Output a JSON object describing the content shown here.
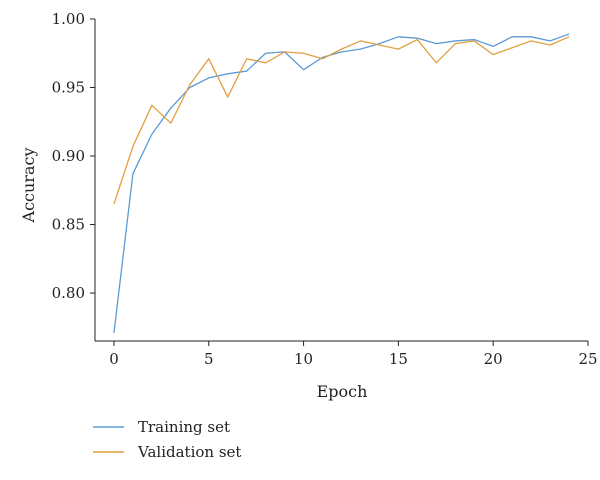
{
  "chart_data": {
    "type": "line",
    "xlabel": "Epoch",
    "ylabel": "Accuracy",
    "xlim": [
      -1,
      25
    ],
    "ylim": [
      0.765,
      1.0
    ],
    "xticks": [
      0,
      5,
      10,
      15,
      20,
      25
    ],
    "yticks": [
      0.8,
      0.85,
      0.9,
      0.95,
      1.0
    ],
    "xtick_labels": [
      "0",
      "5",
      "10",
      "15",
      "20",
      "25"
    ],
    "ytick_labels": [
      "0.80",
      "0.85",
      "0.90",
      "0.95",
      "1.00"
    ],
    "grid": false,
    "legend_position": "below",
    "x": [
      0,
      1,
      2,
      3,
      4,
      5,
      6,
      7,
      8,
      9,
      10,
      11,
      12,
      13,
      14,
      15,
      16,
      17,
      18,
      19,
      20,
      21,
      22,
      23,
      24
    ],
    "series": [
      {
        "name": "Training set",
        "color": "#5b9bd5",
        "values": [
          0.771,
          0.887,
          0.916,
          0.935,
          0.95,
          0.957,
          0.96,
          0.962,
          0.975,
          0.976,
          0.963,
          0.972,
          0.976,
          0.978,
          0.982,
          0.987,
          0.986,
          0.982,
          0.984,
          0.985,
          0.98,
          0.987,
          0.987,
          0.984,
          0.989
        ]
      },
      {
        "name": "Validation set",
        "color": "#e0a040",
        "values": [
          0.865,
          0.907,
          0.937,
          0.924,
          0.952,
          0.971,
          0.943,
          0.971,
          0.968,
          0.976,
          0.975,
          0.971,
          0.978,
          0.984,
          0.981,
          0.978,
          0.985,
          0.968,
          0.982,
          0.984,
          0.974,
          0.979,
          0.984,
          0.981,
          0.987
        ]
      }
    ]
  }
}
